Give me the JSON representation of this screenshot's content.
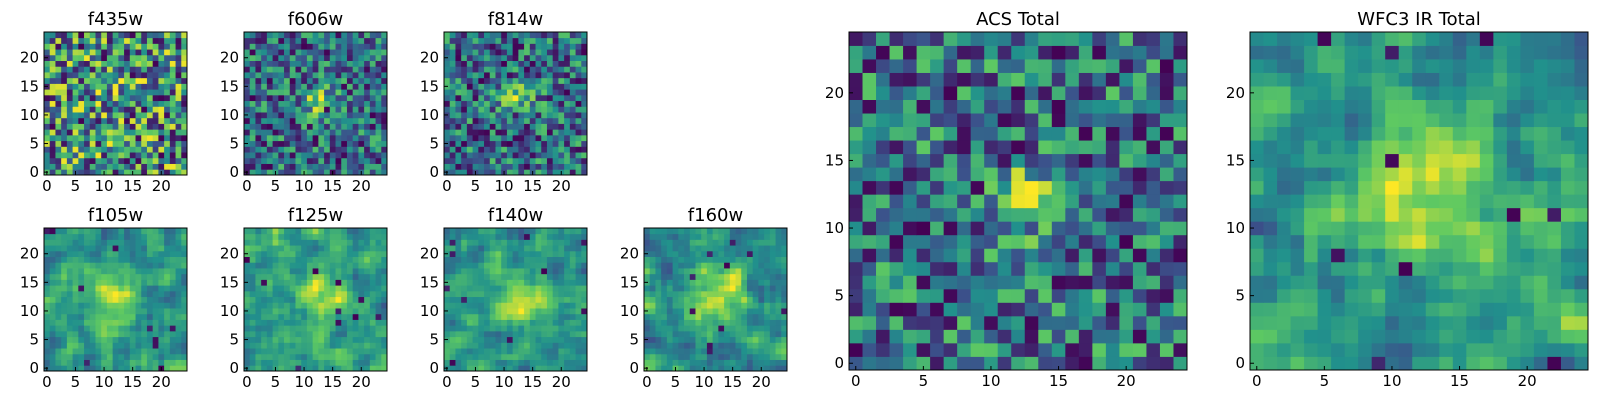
{
  "figure": {
    "description_colormap": "viridis"
  },
  "chart_data": [
    {
      "type": "heatmap",
      "title": "f435w",
      "xlim": [
        0,
        24
      ],
      "ylim": [
        0,
        24
      ],
      "xticks": [
        "0",
        "5",
        "10",
        "15",
        "20"
      ],
      "yticks": [
        "0",
        "5",
        "10",
        "15",
        "20"
      ],
      "feature": "faint",
      "colormap": "viridis",
      "grid": false
    },
    {
      "type": "heatmap",
      "title": "f606w",
      "xlim": [
        0,
        24
      ],
      "ylim": [
        0,
        24
      ],
      "xticks": [
        "0",
        "5",
        "10",
        "15",
        "20"
      ],
      "yticks": [
        "0",
        "5",
        "10",
        "15",
        "20"
      ],
      "feature": "compact",
      "colormap": "viridis",
      "grid": false
    },
    {
      "type": "heatmap",
      "title": "f814w",
      "xlim": [
        0,
        24
      ],
      "ylim": [
        0,
        24
      ],
      "xticks": [
        "0",
        "5",
        "10",
        "15",
        "20"
      ],
      "yticks": [
        "0",
        "5",
        "10",
        "15",
        "20"
      ],
      "feature": "compact",
      "colormap": "viridis",
      "grid": false
    },
    {
      "type": "heatmap",
      "title": "f105w",
      "xlim": [
        0,
        24
      ],
      "ylim": [
        0,
        24
      ],
      "xticks": [
        "0",
        "5",
        "10",
        "15",
        "20"
      ],
      "yticks": [
        "0",
        "5",
        "10",
        "15",
        "20"
      ],
      "feature": "smooth",
      "colormap": "viridis",
      "grid": false
    },
    {
      "type": "heatmap",
      "title": "f125w",
      "xlim": [
        0,
        24
      ],
      "ylim": [
        0,
        24
      ],
      "xticks": [
        "0",
        "5",
        "10",
        "15",
        "20"
      ],
      "yticks": [
        "0",
        "5",
        "10",
        "15",
        "20"
      ],
      "feature": "smooth",
      "colormap": "viridis",
      "grid": false
    },
    {
      "type": "heatmap",
      "title": "f140w",
      "xlim": [
        0,
        24
      ],
      "ylim": [
        0,
        24
      ],
      "xticks": [
        "0",
        "5",
        "10",
        "15",
        "20"
      ],
      "yticks": [
        "0",
        "5",
        "10",
        "15",
        "20"
      ],
      "feature": "smooth",
      "colormap": "viridis",
      "grid": false
    },
    {
      "type": "heatmap",
      "title": "f160w",
      "xlim": [
        0,
        24
      ],
      "ylim": [
        0,
        24
      ],
      "xticks": [
        "0",
        "5",
        "10",
        "15",
        "20"
      ],
      "yticks": [
        "0",
        "5",
        "10",
        "15",
        "20"
      ],
      "feature": "smooth",
      "colormap": "viridis",
      "grid": false
    },
    {
      "type": "heatmap",
      "title": "ACS Total",
      "xlim": [
        0,
        24
      ],
      "ylim": [
        0,
        24
      ],
      "xticks": [
        "0",
        "5",
        "10",
        "15",
        "20"
      ],
      "yticks": [
        "0",
        "5",
        "10",
        "15",
        "20"
      ],
      "feature": "compact",
      "colormap": "viridis",
      "grid": false
    },
    {
      "type": "heatmap",
      "title": "WFC3 IR Total",
      "xlim": [
        0,
        24
      ],
      "ylim": [
        0,
        24
      ],
      "xticks": [
        "0",
        "5",
        "10",
        "15",
        "20"
      ],
      "yticks": [
        "0",
        "5",
        "10",
        "15",
        "20"
      ],
      "feature": "smooth",
      "colormap": "viridis",
      "grid": false
    }
  ]
}
